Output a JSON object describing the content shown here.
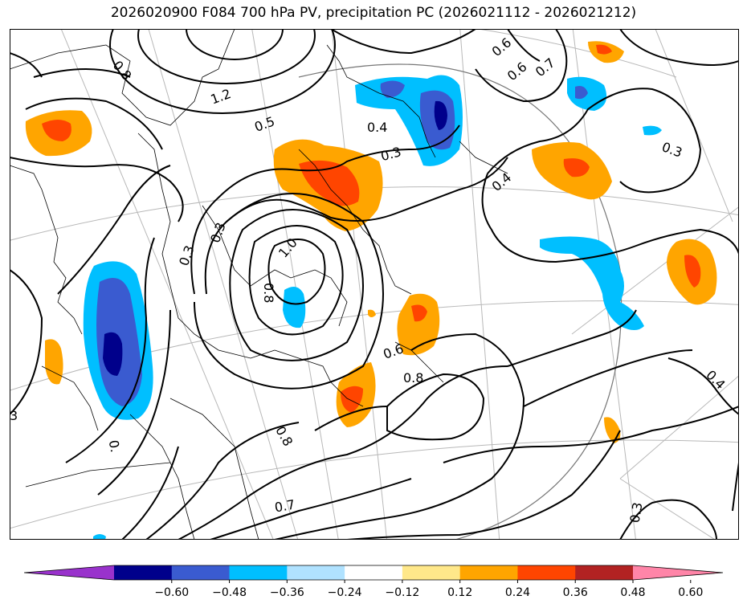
{
  "title": "2026020900 F084 700 hPa PV, precipitation PC (2026021112 - 2026021212)",
  "contour_labels": [
    "0.8",
    "1.2",
    "0.5",
    "0.4",
    "0.3",
    "0.6",
    "0.7",
    "0.6",
    "0.3",
    "0.4",
    "0.3",
    "1.0",
    "0.8",
    "0.3",
    "0.6",
    "0.8",
    "0.8",
    "0.7",
    "0.3",
    "0.4",
    "3",
    "0."
  ],
  "colorbar": {
    "colors": [
      "#9932cc",
      "#00008b",
      "#3a5bd0",
      "#00bfff",
      "#b0e2ff",
      "#ffffff",
      "#ffe88a",
      "#ffa500",
      "#ff4500",
      "#b22222",
      "#ff85a8"
    ],
    "ticks": [
      "−0.60",
      "−0.48",
      "−0.36",
      "−0.24",
      "−0.12",
      "0.12",
      "0.24",
      "0.36",
      "0.48",
      "0.60"
    ]
  }
}
